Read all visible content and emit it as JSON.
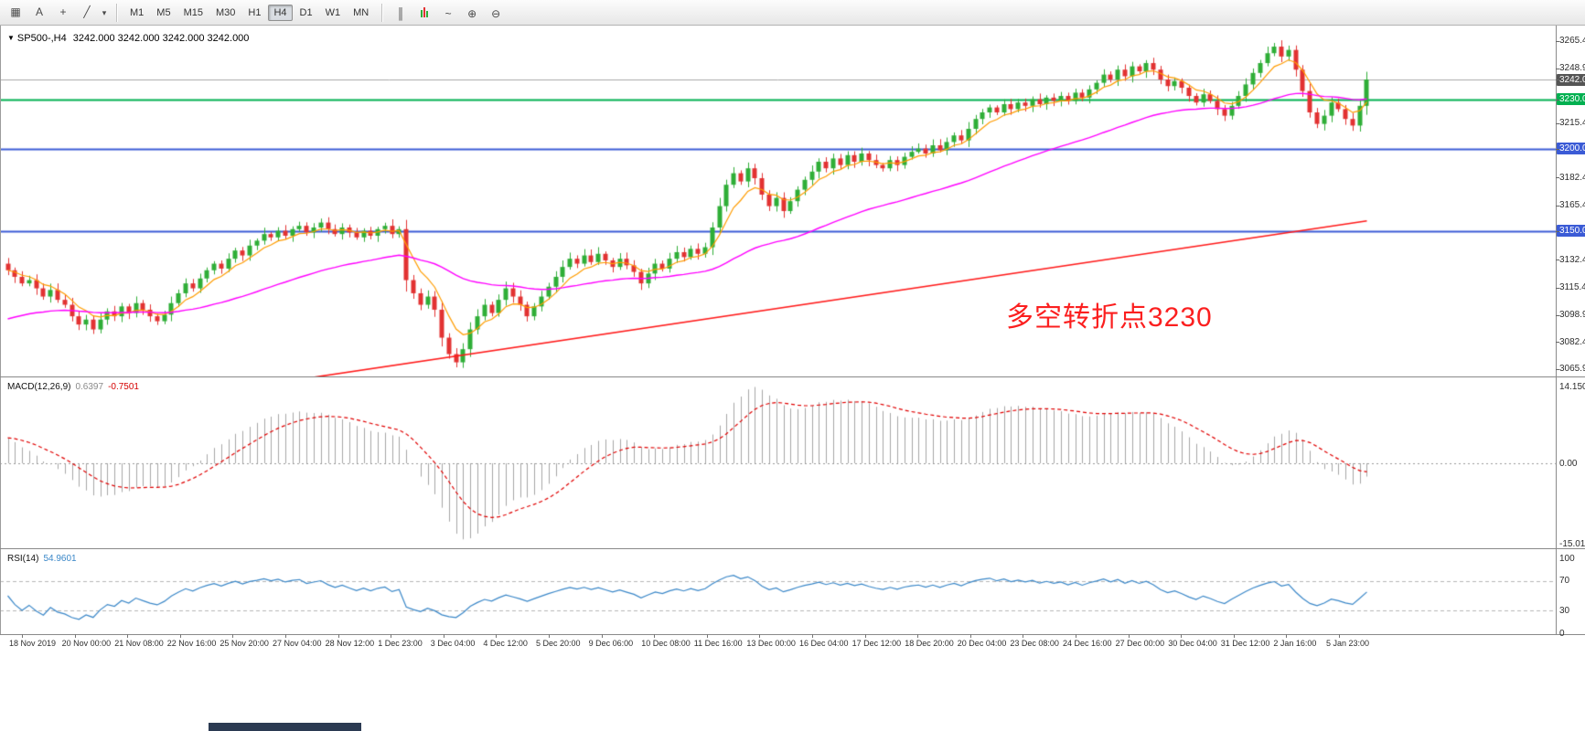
{
  "toolbar": {
    "left_tools": [
      {
        "name": "chart-list-icon",
        "glyph": "▦"
      },
      {
        "name": "text-annotation-icon",
        "glyph": "A"
      },
      {
        "name": "crosshair-icon",
        "glyph": "+"
      },
      {
        "name": "line-studies-icon",
        "glyph": "╱"
      },
      {
        "name": "line-studies-caret",
        "glyph": "▾"
      }
    ],
    "timeframes": [
      {
        "label": "M1",
        "active": false
      },
      {
        "label": "M5",
        "active": false
      },
      {
        "label": "M15",
        "active": false
      },
      {
        "label": "M30",
        "active": false
      },
      {
        "label": "H1",
        "active": false
      },
      {
        "label": "H4",
        "active": true
      },
      {
        "label": "D1",
        "active": false
      },
      {
        "label": "W1",
        "active": false
      },
      {
        "label": "MN",
        "active": false
      }
    ],
    "right_tools": [
      {
        "name": "bar-chart-icon",
        "glyph": "║"
      },
      {
        "name": "candlestick-chart-icon",
        "glyph": "▮"
      },
      {
        "name": "line-chart-icon",
        "glyph": "~"
      },
      {
        "name": "zoom-in-icon",
        "glyph": "⊕"
      },
      {
        "name": "zoom-out-icon",
        "glyph": "⊖"
      }
    ]
  },
  "chart_data": {
    "type": "candlestick",
    "header": {
      "caret": "▼",
      "symbol": "SP500-,H4",
      "ohlc": "3242.000 3242.000 3242.000 3242.000"
    },
    "annotation": {
      "text": "多空转折点3230",
      "color": "#fb1f1f"
    },
    "current_price": 3242.0,
    "candle_colors": {
      "up": "#2fae37",
      "down": "#e23232"
    },
    "price_axis": {
      "top": 3274.8,
      "bottom": 3061.4,
      "labels": [
        {
          "text": "3265.400",
          "price": 3265.4,
          "style": "normal"
        },
        {
          "text": "3248.900",
          "price": 3248.9,
          "style": "normal"
        },
        {
          "text": "3242.000",
          "price": 3242.0,
          "style": "bid"
        },
        {
          "text": "3230.000",
          "price": 3230.0,
          "style": "green"
        },
        {
          "text": "3215.400",
          "price": 3215.4,
          "style": "normal"
        },
        {
          "text": "3200.000",
          "price": 3200.0,
          "style": "blue"
        },
        {
          "text": "3182.400",
          "price": 3182.4,
          "style": "normal"
        },
        {
          "text": "3165.400",
          "price": 3165.4,
          "style": "normal"
        },
        {
          "text": "3150.000",
          "price": 3150.0,
          "style": "blue"
        },
        {
          "text": "3132.400",
          "price": 3132.4,
          "style": "normal"
        },
        {
          "text": "3115.400",
          "price": 3115.4,
          "style": "normal"
        },
        {
          "text": "3098.900",
          "price": 3098.9,
          "style": "normal"
        },
        {
          "text": "3082.400",
          "price": 3082.4,
          "style": "normal"
        },
        {
          "text": "3065.900",
          "price": 3065.9,
          "style": "normal"
        }
      ]
    },
    "levels": [
      {
        "price": 3242.0,
        "color": "#a8a8a8",
        "width": 1,
        "type": "bid-line"
      },
      {
        "price": 3230.0,
        "color": "#00b050",
        "width": 2,
        "type": "horizontal-line"
      },
      {
        "price": 3200.0,
        "color": "#3b5bd6",
        "width": 2,
        "type": "horizontal-line"
      },
      {
        "price": 3150.0,
        "color": "#3b5bd6",
        "width": 2,
        "type": "horizontal-line"
      }
    ],
    "first_open": 3130,
    "closes": [
      3126,
      3122,
      3118,
      3120,
      3115,
      3110,
      3114,
      3108,
      3105,
      3098,
      3093,
      3096,
      3090,
      3096,
      3101,
      3098,
      3104,
      3100,
      3106,
      3102,
      3098,
      3095,
      3099,
      3106,
      3112,
      3118,
      3115,
      3121,
      3126,
      3130,
      3127,
      3133,
      3138,
      3135,
      3141,
      3144,
      3148,
      3146,
      3150,
      3147,
      3151,
      3153,
      3149,
      3152,
      3155,
      3151,
      3148,
      3152,
      3149,
      3146,
      3150,
      3147,
      3151,
      3153,
      3148,
      3151,
      3120,
      3112,
      3105,
      3110,
      3102,
      3085,
      3075,
      3070,
      3078,
      3090,
      3098,
      3105,
      3100,
      3108,
      3115,
      3110,
      3105,
      3098,
      3104,
      3110,
      3116,
      3122,
      3128,
      3133,
      3130,
      3135,
      3131,
      3136,
      3132,
      3128,
      3133,
      3129,
      3125,
      3118,
      3124,
      3130,
      3127,
      3133,
      3137,
      3134,
      3139,
      3136,
      3140,
      3152,
      3165,
      3178,
      3185,
      3180,
      3188,
      3182,
      3172,
      3165,
      3170,
      3162,
      3168,
      3175,
      3181,
      3186,
      3192,
      3188,
      3194,
      3190,
      3196,
      3192,
      3197,
      3193,
      3190,
      3188,
      3193,
      3190,
      3195,
      3198,
      3200,
      3197,
      3202,
      3199,
      3204,
      3208,
      3205,
      3212,
      3218,
      3222,
      3225,
      3222,
      3227,
      3224,
      3228,
      3226,
      3230,
      3227,
      3231,
      3229,
      3232,
      3229,
      3234,
      3231,
      3236,
      3240,
      3245,
      3242,
      3248,
      3244,
      3250,
      3247,
      3252,
      3248,
      3242,
      3238,
      3241,
      3237,
      3232,
      3228,
      3233,
      3229,
      3224,
      3220,
      3226,
      3232,
      3239,
      3246,
      3252,
      3258,
      3262,
      3256,
      3260,
      3248,
      3235,
      3222,
      3215,
      3220,
      3228,
      3224,
      3218,
      3214,
      3226,
      3242
    ],
    "moving_averages": [
      {
        "name": "fast-ma",
        "type": "ema",
        "alpha": 0.28,
        "color": "#ff9c00",
        "width": 1.2
      },
      {
        "name": "medium-ma",
        "type": "ema",
        "alpha": 0.045,
        "seed": 3095,
        "color": "#ff00ff",
        "width": 1.4
      },
      {
        "name": "slow-ma",
        "type": "linear",
        "color": "#ff1a1a",
        "width": 1.6,
        "from": {
          "index": 40,
          "price": 3059
        },
        "to": {
          "index": 191,
          "price": 3156
        }
      }
    ],
    "macd": {
      "label": "MACD(12,26,9)",
      "main_value": "0.6397",
      "signal_value": "-0.7501",
      "fast": 12,
      "slow": 26,
      "signal": 9,
      "histogram_color": "#a6a6a6",
      "signal_color": "#e00000",
      "axis_labels": [
        {
          "text": "14.1509",
          "value": 14.1509
        },
        {
          "text": "0.00",
          "value": 0
        },
        {
          "text": "-15.019",
          "value": -15.019
        }
      ]
    },
    "rsi": {
      "label": "RSI(14)",
      "value": "54.9601",
      "period": 14,
      "color": "#3a87c8",
      "dashed_levels": [
        70,
        30
      ],
      "axis_labels": [
        {
          "text": "100",
          "value": 100
        },
        {
          "text": "70",
          "value": 70
        },
        {
          "text": "30",
          "value": 30
        },
        {
          "text": "0",
          "value": 0
        }
      ]
    },
    "time_labels": [
      "18 Nov 2019",
      "20 Nov 00:00",
      "21 Nov 08:00",
      "22 Nov 16:00",
      "25 Nov 20:00",
      "27 Nov 04:00",
      "28 Nov 12:00",
      "1 Dec 23:00",
      "3 Dec 04:00",
      "4 Dec 12:00",
      "5 Dec 20:00",
      "9 Dec 06:00",
      "10 Dec 08:00",
      "11 Dec 16:00",
      "13 Dec 00:00",
      "16 Dec 04:00",
      "17 Dec 12:00",
      "18 Dec 20:00",
      "20 Dec 04:00",
      "23 Dec 08:00",
      "24 Dec 16:00",
      "27 Dec 00:00",
      "30 Dec 04:00",
      "31 Dec 12:00",
      "2 Jan 16:00",
      "5 Jan 23:00"
    ]
  }
}
